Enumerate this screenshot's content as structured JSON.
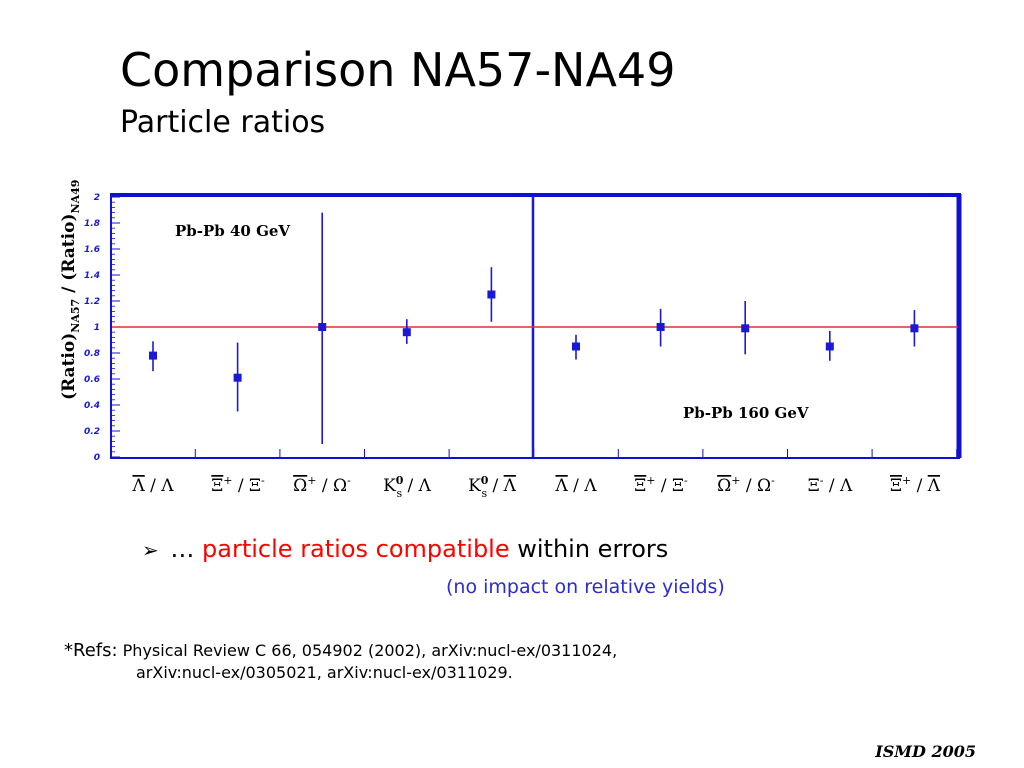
{
  "header": {
    "title": "Comparison NA57-NA49",
    "subtitle": "Particle ratios"
  },
  "chart_data": {
    "type": "scatter",
    "ylim": [
      0,
      2
    ],
    "yticks": [
      "0",
      "0.2",
      "0.4",
      "0.6",
      "0.8",
      "1",
      "1.2",
      "1.4",
      "1.6",
      "1.8",
      "2"
    ],
    "ylabel": "(Ratio)NA57 / (Ratio)NA49",
    "reference_line": 1,
    "categories": [
      "Λ̄ / Λ",
      "Ξ̄+ / Ξ-",
      "Ω̄+ / Ω-",
      "K0s / Λ",
      "K0s / Λ̄",
      "Λ̄ / Λ",
      "Ξ̄+ / Ξ-",
      "Ω̄+ / Ω-",
      "Ξ- / Λ",
      "Ξ̄+ / Λ̄"
    ],
    "annotations": [
      "Pb-Pb 40 GeV",
      "Pb-Pb 160 GeV"
    ],
    "series": [
      {
        "name": "",
        "points": [
          {
            "i": 0,
            "y": 0.78,
            "lo": 0.66,
            "hi": 0.89
          },
          {
            "i": 1,
            "y": 0.61,
            "lo": 0.35,
            "hi": 0.88
          },
          {
            "i": 2,
            "y": 1.0,
            "lo": 0.1,
            "hi": 1.88
          },
          {
            "i": 3,
            "y": 0.96,
            "lo": 0.87,
            "hi": 1.06
          },
          {
            "i": 4,
            "y": 1.25,
            "lo": 1.04,
            "hi": 1.46
          },
          {
            "i": 5,
            "y": 0.85,
            "lo": 0.75,
            "hi": 0.94
          },
          {
            "i": 6,
            "y": 1.0,
            "lo": 0.85,
            "hi": 1.14
          },
          {
            "i": 7,
            "y": 0.99,
            "lo": 0.79,
            "hi": 1.2
          },
          {
            "i": 8,
            "y": 0.85,
            "lo": 0.74,
            "hi": 0.97
          },
          {
            "i": 9,
            "y": 0.99,
            "lo": 0.85,
            "hi": 1.13
          }
        ]
      }
    ],
    "colors": {
      "points": "#1a1ad6",
      "reference": "#e03030",
      "frame": "#1010d0",
      "axis_text": "#1a1ad6"
    }
  },
  "bullet": {
    "arrow": "➢",
    "prefix": "…",
    "highlight": "particle ratios compatible",
    "suffix": "within errors",
    "note": "(no impact on relative yields)"
  },
  "refs": {
    "lead": "*Refs:",
    "line1": "Physical Review C 66, 054902 (2002), arXiv:nucl-ex/0311024,",
    "line2": "arXiv:nucl-ex/0305021, arXiv:nucl-ex/0311029."
  },
  "footer": "ISMD 2005"
}
